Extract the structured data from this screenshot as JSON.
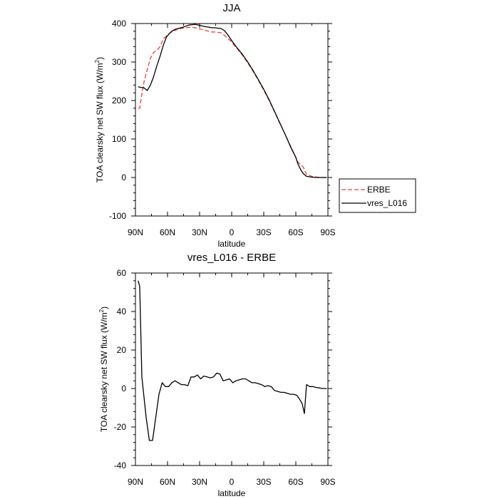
{
  "chart_data": [
    {
      "type": "line",
      "title": "JJA",
      "xlabel": "latitude",
      "ylabel": "TOA clearsky net SW flux (W/m",
      "ylabel_sup": "2",
      "ylabel_close": ")",
      "xlim": [
        90,
        -90
      ],
      "ylim": [
        -100,
        400
      ],
      "xticks": [
        90,
        60,
        30,
        0,
        -30,
        -60,
        -90
      ],
      "xtick_labels": [
        "90N",
        "60N",
        "30N",
        "0",
        "30S",
        "60S",
        "90S"
      ],
      "yticks": [
        -100,
        0,
        100,
        200,
        300,
        400
      ],
      "ytick_labels": [
        "-100",
        "0",
        "100",
        "200",
        "300",
        "400"
      ],
      "legend": "right",
      "series": [
        {
          "name": "ERBE",
          "color": "#e8403a",
          "dash": "dashed",
          "x": [
            87.5,
            86,
            85,
            82,
            79,
            76,
            73,
            70,
            67,
            64,
            61,
            58,
            55,
            52,
            49,
            46,
            43,
            40,
            37,
            34,
            31,
            28,
            25,
            22,
            19,
            16,
            13,
            10,
            7,
            4,
            1,
            -2,
            -5,
            -10,
            -15,
            -20,
            -25,
            -30,
            -35,
            -40,
            -45,
            -50,
            -55,
            -60,
            -62,
            -65,
            -67,
            -70,
            -75,
            -80,
            -85,
            -89
          ],
          "y": [
            180,
            180,
            200,
            248,
            280,
            310,
            325,
            330,
            340,
            360,
            368,
            375,
            380,
            383,
            386,
            388,
            389,
            390,
            390,
            389,
            386,
            385,
            383,
            380,
            378,
            378,
            377,
            376,
            370,
            362,
            355,
            345,
            335,
            318,
            298,
            276,
            252,
            227,
            200,
            171,
            141,
            112,
            82,
            52,
            40,
            32,
            27,
            8,
            3,
            1,
            0,
            0
          ]
        },
        {
          "name": "vres_L016",
          "color": "#000000",
          "dash": "solid",
          "x": [
            87.5,
            85,
            82,
            79,
            76,
            73,
            70,
            67,
            64,
            61,
            58,
            55,
            52,
            49,
            46,
            43,
            40,
            37,
            34,
            31,
            28,
            25,
            22,
            19,
            16,
            13,
            10,
            7,
            4,
            1,
            -2,
            -5,
            -10,
            -15,
            -20,
            -25,
            -30,
            -35,
            -40,
            -45,
            -50,
            -55,
            -60,
            -62,
            -65,
            -67,
            -70,
            -75,
            -80,
            -85,
            -89
          ],
          "y": [
            236,
            234,
            233,
            226,
            240,
            262,
            290,
            315,
            343,
            365,
            375,
            382,
            386,
            388,
            390,
            393,
            396,
            397,
            398,
            396,
            394,
            392,
            391,
            389,
            389,
            388,
            387,
            382,
            372,
            360,
            348,
            337,
            320,
            300,
            278,
            254,
            229,
            202,
            172,
            142,
            112,
            80,
            52,
            35,
            18,
            10,
            3,
            1,
            0,
            0,
            0
          ]
        }
      ]
    },
    {
      "type": "line",
      "title": "vres_L016 - ERBE",
      "xlabel": "latitude",
      "ylabel": "TOA clearsky net SW flux (W/m",
      "ylabel_sup": "2",
      "ylabel_close": ")",
      "xlim": [
        90,
        -90
      ],
      "ylim": [
        -40,
        60
      ],
      "xticks": [
        90,
        60,
        30,
        0,
        -30,
        -60,
        -90
      ],
      "xtick_labels": [
        "90N",
        "60N",
        "30N",
        "0",
        "30S",
        "60S",
        "90S"
      ],
      "yticks": [
        -40,
        -20,
        0,
        20,
        40,
        60
      ],
      "ytick_labels": [
        "-40",
        "-20",
        "0",
        "20",
        "40",
        "60"
      ],
      "series": [
        {
          "name": "vres_L016 - ERBE",
          "color": "#000000",
          "dash": "solid",
          "x": [
            87.5,
            86,
            84,
            80,
            77,
            74,
            71,
            68,
            65,
            62,
            59,
            56,
            53,
            50,
            47,
            44,
            41,
            38,
            35,
            32,
            29,
            26,
            23,
            20,
            17,
            14,
            11,
            8,
            5,
            2,
            -1,
            -4,
            -7,
            -10,
            -13,
            -16,
            -19,
            -22,
            -25,
            -28,
            -31,
            -34,
            -37,
            -40,
            -43,
            -46,
            -49,
            -52,
            -55,
            -58,
            -61,
            -64,
            -66,
            -68,
            -70,
            -73,
            -76,
            -79,
            -82,
            -85,
            -89
          ],
          "y": [
            56,
            53,
            6,
            -15,
            -27,
            -27,
            -15,
            -3,
            3,
            1,
            1,
            3,
            4,
            3,
            2,
            2,
            1.5,
            6,
            6,
            7,
            5,
            6.5,
            6,
            5.5,
            6,
            8,
            7.5,
            4,
            4.5,
            5,
            3,
            4,
            4.5,
            5,
            5,
            4,
            3,
            3,
            2.5,
            2,
            1,
            1.5,
            1,
            -1,
            -1.5,
            -2,
            -2,
            -2.5,
            -3,
            -3,
            -3.5,
            -6,
            -8,
            -13,
            2,
            1,
            1,
            0.5,
            0.3,
            0,
            0
          ]
        }
      ]
    }
  ]
}
